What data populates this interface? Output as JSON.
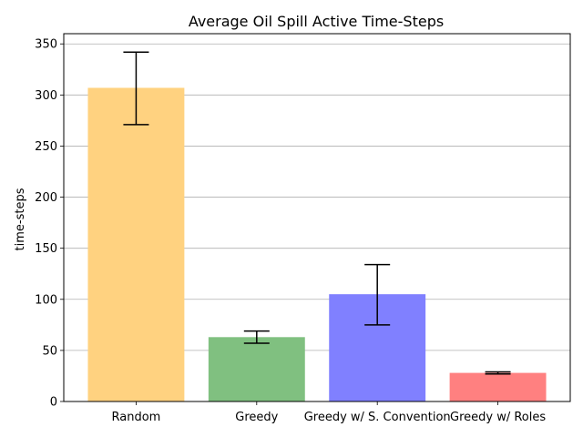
{
  "chart_data": {
    "type": "bar",
    "title": "Average Oil Spill Active Time-Steps",
    "xlabel": "",
    "ylabel": "time-steps",
    "categories": [
      "Random",
      "Greedy",
      "Greedy w/ S. Convention",
      "Greedy w/ Roles"
    ],
    "values": [
      307,
      63,
      105,
      28
    ],
    "error_low": [
      271,
      57,
      75,
      27
    ],
    "error_high": [
      342,
      69,
      134,
      29
    ],
    "colors": [
      "#ffd280",
      "#80c080",
      "#8080ff",
      "#ff8080"
    ],
    "ylim": [
      0,
      360
    ],
    "yticks": [
      0,
      50,
      100,
      150,
      200,
      250,
      300,
      350
    ],
    "grid": "y"
  }
}
